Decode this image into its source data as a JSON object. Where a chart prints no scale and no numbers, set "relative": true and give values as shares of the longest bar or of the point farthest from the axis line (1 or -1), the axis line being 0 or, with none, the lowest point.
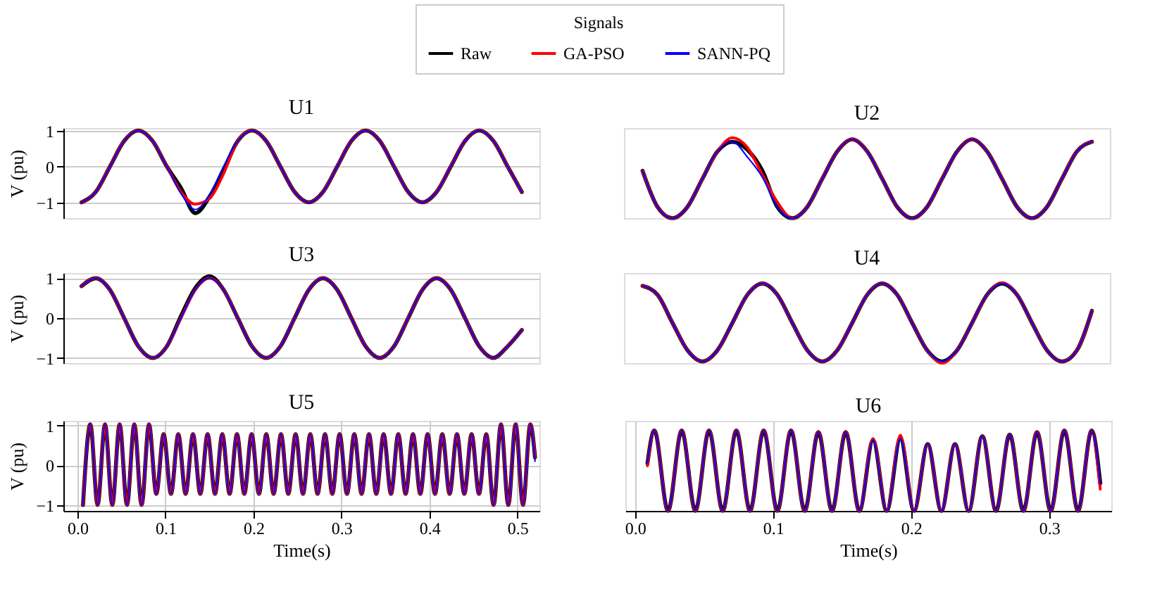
{
  "chart_data": [
    {
      "type": "line",
      "title": "U1",
      "ylabel": "V (pu)",
      "legend_title": "Signals",
      "legend": "top",
      "grid": true,
      "tick_labels": "y",
      "ylim": [
        -1.44,
        1.07
      ],
      "yticks": [
        -1,
        0,
        1
      ],
      "categories": [
        null,
        null,
        null,
        null,
        null,
        null,
        null,
        null,
        null,
        null,
        null,
        null,
        null,
        null,
        null,
        null,
        null,
        null,
        null,
        null,
        null,
        null,
        null,
        null,
        null,
        null,
        null,
        null,
        null,
        null,
        null,
        null
      ],
      "series": [
        {
          "name": "Raw",
          "color": "#000000",
          "values": [
            -1,
            -0.71,
            0,
            0.71,
            1,
            0.71,
            0,
            -0.6,
            -1.3,
            -0.85,
            -0.1,
            0.71,
            1,
            0.71,
            0,
            -0.71,
            -1,
            -0.71,
            0,
            0.71,
            1,
            0.71,
            0,
            -0.71,
            -1,
            -0.71,
            0,
            0.71,
            1,
            0.71,
            0,
            -0.71
          ]
        },
        {
          "name": "GA-PSO",
          "color": "#ff0000",
          "values": [
            -1,
            -0.71,
            0,
            0.71,
            1,
            0.71,
            0,
            -0.71,
            -1.05,
            -0.9,
            -0.2,
            0.71,
            1,
            0.71,
            0,
            -0.71,
            -1,
            -0.71,
            0,
            0.71,
            1,
            0.71,
            0,
            -0.71,
            -1,
            -0.71,
            0,
            0.71,
            1,
            0.71,
            0,
            -0.71
          ]
        },
        {
          "name": "SANN-PQ",
          "color": "#0000ff",
          "values": [
            -1,
            -0.71,
            0,
            0.71,
            1,
            0.71,
            0,
            -0.75,
            -1.2,
            -0.8,
            0,
            0.71,
            1,
            0.71,
            0,
            -0.71,
            -1,
            -0.71,
            0,
            0.71,
            1,
            0.71,
            0,
            -0.71,
            -1,
            -0.71,
            0,
            0.71,
            1,
            0.71,
            0,
            -0.71
          ]
        }
      ]
    },
    {
      "type": "line",
      "title": "U2",
      "relative": true,
      "tick_labels": false,
      "categories": [
        null,
        null,
        null,
        null,
        null,
        null,
        null,
        null,
        null,
        null,
        null,
        null,
        null,
        null,
        null,
        null,
        null,
        null,
        null,
        null,
        null,
        null,
        null,
        null,
        null,
        null,
        null,
        null,
        null,
        null,
        null
      ],
      "series": [
        {
          "color": "#000000",
          "values": [
            0.59,
            0.14,
            0,
            0.14,
            0.49,
            0.83,
            0.95,
            0.85,
            0.59,
            0.14,
            0,
            0.14,
            0.49,
            0.83,
            0.98,
            0.83,
            0.49,
            0.14,
            0,
            0.14,
            0.49,
            0.83,
            0.98,
            0.83,
            0.49,
            0.14,
            0,
            0.14,
            0.49,
            0.83,
            0.95
          ]
        },
        {
          "color": "#ff0000",
          "values": [
            0.59,
            0.14,
            0,
            0.14,
            0.49,
            0.83,
            1,
            0.88,
            0.54,
            0.2,
            0,
            0.14,
            0.49,
            0.83,
            0.98,
            0.83,
            0.49,
            0.14,
            0,
            0.14,
            0.49,
            0.83,
            0.98,
            0.83,
            0.49,
            0.14,
            0,
            0.14,
            0.49,
            0.83,
            0.95
          ]
        },
        {
          "color": "#0000ff",
          "values": [
            0.59,
            0.14,
            0,
            0.14,
            0.49,
            0.83,
            0.95,
            0.76,
            0.51,
            0.14,
            0,
            0.14,
            0.49,
            0.83,
            0.98,
            0.83,
            0.49,
            0.14,
            0,
            0.14,
            0.49,
            0.83,
            0.98,
            0.83,
            0.49,
            0.14,
            0,
            0.14,
            0.49,
            0.83,
            0.95
          ]
        }
      ]
    },
    {
      "type": "line",
      "title": "U3",
      "ylabel": "V (pu)",
      "grid": true,
      "tick_labels": "y",
      "ylim": [
        -1.13,
        1.13
      ],
      "yticks": [
        -1,
        0,
        1
      ],
      "categories": [
        null,
        null,
        null,
        null,
        null,
        null,
        null,
        null,
        null,
        null,
        null,
        null,
        null,
        null,
        null,
        null,
        null,
        null,
        null,
        null,
        null,
        null,
        null,
        null,
        null,
        null,
        null,
        null,
        null,
        null,
        null,
        null
      ],
      "series": [
        {
          "color": "#000000",
          "values": [
            0.8,
            1,
            0.71,
            0,
            -0.71,
            -1,
            -0.71,
            0.05,
            0.75,
            1.05,
            0.71,
            0,
            -0.71,
            -1,
            -0.71,
            0,
            0.71,
            1,
            0.71,
            0,
            -0.71,
            -1,
            -0.71,
            0,
            0.71,
            1,
            0.71,
            0,
            -0.71,
            -1,
            -0.71,
            -0.3
          ]
        },
        {
          "color": "#ff0000",
          "values": [
            0.8,
            1,
            0.71,
            0,
            -0.71,
            -1,
            -0.71,
            0,
            0.7,
            1,
            0.71,
            0,
            -0.71,
            -1,
            -0.71,
            0,
            0.71,
            1,
            0.71,
            0,
            -0.71,
            -1,
            -0.71,
            0,
            0.71,
            1,
            0.71,
            0,
            -0.71,
            -1,
            -0.71,
            -0.3
          ]
        },
        {
          "color": "#0000ff",
          "values": [
            0.8,
            1,
            0.71,
            0,
            -0.71,
            -1,
            -0.71,
            0,
            0.71,
            1,
            0.71,
            0,
            -0.71,
            -1,
            -0.71,
            0,
            0.71,
            1,
            0.71,
            0,
            -0.71,
            -1,
            -0.71,
            0,
            0.71,
            1,
            0.71,
            0,
            -0.71,
            -1,
            -0.71,
            -0.3
          ]
        }
      ]
    },
    {
      "type": "line",
      "title": "U4",
      "relative": true,
      "tick_labels": false,
      "categories": [
        null,
        null,
        null,
        null,
        null,
        null,
        null,
        null,
        null,
        null,
        null,
        null,
        null,
        null,
        null,
        null,
        null,
        null,
        null,
        null,
        null,
        null,
        null,
        null,
        null,
        null,
        null,
        null,
        null,
        null,
        null
      ],
      "series": [
        {
          "color": "#000000",
          "values": [
            0.96,
            0.85,
            0.5,
            0.16,
            0.02,
            0.16,
            0.5,
            0.85,
            0.99,
            0.85,
            0.5,
            0.16,
            0.02,
            0.16,
            0.5,
            0.85,
            0.99,
            0.85,
            0.5,
            0.16,
            0.02,
            0.16,
            0.5,
            0.85,
            0.99,
            0.85,
            0.5,
            0.16,
            0.02,
            0.16,
            0.65
          ]
        },
        {
          "color": "#ff0000",
          "values": [
            0.96,
            0.85,
            0.5,
            0.16,
            0.02,
            0.16,
            0.5,
            0.85,
            0.99,
            0.85,
            0.5,
            0.16,
            0.02,
            0.16,
            0.5,
            0.85,
            0.99,
            0.85,
            0.5,
            0.16,
            0,
            0.16,
            0.5,
            0.85,
            1,
            0.85,
            0.5,
            0.16,
            0.02,
            0.16,
            0.65
          ]
        },
        {
          "color": "#0000ff",
          "values": [
            0.96,
            0.85,
            0.5,
            0.16,
            0.02,
            0.16,
            0.5,
            0.85,
            0.99,
            0.85,
            0.5,
            0.16,
            0.02,
            0.16,
            0.5,
            0.85,
            0.99,
            0.85,
            0.5,
            0.16,
            0.02,
            0.16,
            0.5,
            0.85,
            0.99,
            0.85,
            0.5,
            0.16,
            0.02,
            0.16,
            0.65
          ]
        }
      ]
    },
    {
      "type": "line",
      "title": "U5",
      "ylabel": "V (pu)",
      "xlabel": "Time(s)",
      "grid": true,
      "xlim": [
        -0.016,
        0.525
      ],
      "xticks": [
        {
          "value": 0,
          "label": "0.0"
        },
        0.1,
        0.2,
        0.3,
        0.4,
        0.5
      ],
      "ylim": [
        -1.15,
        1.12
      ],
      "yticks": [
        -1,
        0,
        1
      ],
      "x": [
        0.0063,
        0.0146,
        0.0229,
        0.0313,
        0.0396,
        0.0479,
        0.0563,
        0.0646,
        0.0729,
        0.0813,
        0.0896,
        0.0979,
        0.1063,
        0.1146,
        0.1229,
        0.1313,
        0.1396,
        0.1479,
        0.1563,
        0.1646,
        0.1729,
        0.1813,
        0.1896,
        0.1979,
        0.2063,
        0.2146,
        0.2229,
        0.2313,
        0.2396,
        0.2479,
        0.2563,
        0.2646,
        0.2729,
        0.2813,
        0.2896,
        0.2979,
        0.3063,
        0.3146,
        0.3229,
        0.3313,
        0.3396,
        0.3479,
        0.3563,
        0.3646,
        0.3729,
        0.3813,
        0.3896,
        0.3979,
        0.4063,
        0.4146,
        0.4229,
        0.4313,
        0.4396,
        0.4479,
        0.4563,
        0.4646,
        0.4729,
        0.4813,
        0.4896,
        0.4979,
        0.5063,
        0.5146,
        0.52
      ],
      "series": [
        {
          "color": "#000000",
          "values": [
            -1,
            1.03,
            -1,
            1.03,
            -1,
            1.03,
            -1,
            1.03,
            -1,
            1.03,
            -0.72,
            0.78,
            -0.72,
            0.78,
            -0.72,
            0.78,
            -0.72,
            0.78,
            -0.72,
            0.78,
            -0.72,
            0.78,
            -0.72,
            0.78,
            -0.72,
            0.78,
            -0.72,
            0.78,
            -0.72,
            0.78,
            -0.72,
            0.78,
            -0.72,
            0.78,
            -0.72,
            0.78,
            -0.72,
            0.78,
            -0.72,
            0.78,
            -0.72,
            0.78,
            -0.72,
            0.78,
            -0.72,
            0.78,
            -0.72,
            0.78,
            -0.72,
            0.78,
            -0.72,
            0.78,
            -0.72,
            0.78,
            -0.72,
            0.78,
            -1,
            1.03,
            -1,
            1.03,
            -1,
            1.03,
            0.2
          ]
        },
        {
          "color": "#ff0000",
          "values": [
            -1,
            1.03,
            -1,
            1.03,
            -1,
            1.03,
            -1,
            1.03,
            -1,
            1.03,
            -0.72,
            0.78,
            -0.72,
            0.78,
            -0.72,
            0.78,
            -0.72,
            0.78,
            -0.72,
            0.78,
            -0.72,
            0.78,
            -0.72,
            0.78,
            -0.72,
            0.78,
            -0.72,
            0.78,
            -0.72,
            0.78,
            -0.72,
            0.78,
            -0.72,
            0.78,
            -0.72,
            0.78,
            -0.72,
            0.78,
            -0.72,
            0.78,
            -0.72,
            0.78,
            -0.72,
            0.78,
            -0.72,
            0.78,
            -0.72,
            0.78,
            -0.72,
            0.78,
            -0.72,
            0.78,
            -0.72,
            0.78,
            -0.72,
            0.78,
            -1,
            1.03,
            -1,
            1.03,
            -1,
            1.03,
            0.2
          ]
        },
        {
          "color": "#0000ff",
          "values": [
            -1,
            1.03,
            -1,
            1.03,
            -1,
            1.03,
            -1,
            1.03,
            -1,
            1.03,
            -0.72,
            0.78,
            -0.72,
            0.78,
            -0.72,
            0.78,
            -0.72,
            0.78,
            -0.72,
            0.78,
            -0.72,
            0.78,
            -0.72,
            0.78,
            -0.72,
            0.78,
            -0.72,
            0.78,
            -0.72,
            0.78,
            -0.72,
            0.78,
            -0.72,
            0.78,
            -0.72,
            0.78,
            -0.72,
            0.78,
            -0.72,
            0.78,
            -0.72,
            0.78,
            -0.72,
            0.78,
            -0.72,
            0.78,
            -0.72,
            0.78,
            -0.72,
            0.78,
            -0.72,
            0.78,
            -0.72,
            0.78,
            -0.72,
            0.78,
            -1,
            1.03,
            -1,
            1.03,
            -1,
            1.03,
            0.1
          ]
        }
      ]
    },
    {
      "type": "line",
      "title": "U6",
      "xlabel": "Time(s)",
      "relative": true,
      "grid": "x",
      "tick_labels": "x",
      "xlim": [
        -0.007,
        0.345
      ],
      "xticks": [
        {
          "value": 0,
          "label": "0.0"
        },
        0.1,
        0.2,
        0.3
      ],
      "x": [
        0.009,
        0.014,
        0.0239,
        0.0338,
        0.0437,
        0.0536,
        0.0635,
        0.0734,
        0.0833,
        0.0932,
        0.1031,
        0.113,
        0.1229,
        0.1328,
        0.1427,
        0.1526,
        0.1625,
        0.1724,
        0.1823,
        0.1922,
        0.2021,
        0.212,
        0.2219,
        0.2318,
        0.2417,
        0.2516,
        0.2615,
        0.2714,
        0.2813,
        0.2912,
        0.3011,
        0.311,
        0.3209,
        0.3308,
        0.337
      ],
      "series": [
        {
          "color": "#000000",
          "values": [
            0.59,
            1,
            0,
            1,
            0,
            1,
            0,
            1,
            0,
            1,
            0,
            1,
            0,
            0.98,
            0,
            0.98,
            0,
            0.88,
            0,
            0.9,
            0,
            0.83,
            0,
            0.83,
            0,
            0.93,
            0,
            0.95,
            0,
            0.98,
            0,
            1,
            0,
            1,
            0.34
          ]
        },
        {
          "color": "#ff0000",
          "values": [
            0.56,
            1,
            0,
            1,
            0,
            1,
            0,
            1,
            0,
            1,
            0,
            1,
            0,
            0.98,
            0,
            0.98,
            0,
            0.9,
            0,
            0.94,
            0,
            0.83,
            0,
            0.83,
            0,
            0.93,
            0,
            0.95,
            0,
            0.98,
            0,
            1,
            0,
            1,
            0.27
          ]
        },
        {
          "color": "#0000ff",
          "values": [
            0.59,
            1,
            0,
            1,
            0,
            1,
            0,
            1,
            0,
            1,
            0,
            1,
            0,
            0.98,
            0,
            0.98,
            0,
            0.88,
            0,
            0.9,
            0,
            0.83,
            0,
            0.83,
            0,
            0.93,
            0,
            0.95,
            0,
            0.98,
            0,
            1,
            0,
            1,
            0.34
          ]
        }
      ]
    }
  ]
}
